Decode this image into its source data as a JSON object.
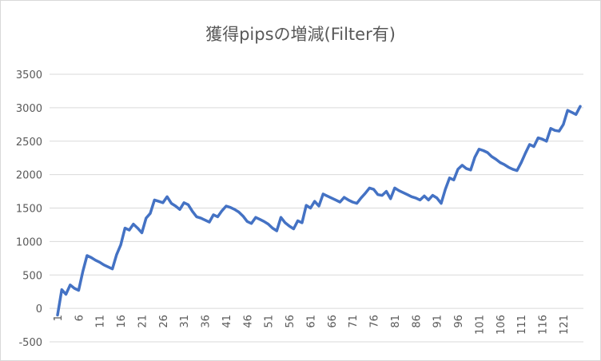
{
  "chart_data": {
    "type": "line",
    "title": "獲得pipsの増減(Filter有)",
    "categories": [
      1,
      null,
      null,
      null,
      null,
      6,
      null,
      null,
      null,
      null,
      11,
      null,
      null,
      null,
      null,
      16,
      null,
      null,
      null,
      null,
      21,
      null,
      null,
      null,
      null,
      26,
      null,
      null,
      null,
      null,
      31,
      null,
      null,
      null,
      null,
      36,
      null,
      null,
      null,
      null,
      41,
      null,
      null,
      null,
      null,
      46,
      null,
      null,
      null,
      null,
      51,
      null,
      null,
      null,
      null,
      56,
      null,
      null,
      null,
      null,
      61,
      null,
      null,
      null,
      null,
      66,
      null,
      null,
      null,
      null,
      71,
      null,
      null,
      null,
      null,
      76,
      null,
      null,
      null,
      null,
      81,
      null,
      null,
      null,
      null,
      86,
      null,
      null,
      null,
      null,
      91,
      null,
      null,
      null,
      null,
      96,
      null,
      null,
      null,
      null,
      101,
      null,
      null,
      null,
      null,
      106,
      null,
      null,
      null,
      null,
      111,
      null,
      null,
      null,
      null,
      116,
      null,
      null,
      null,
      null,
      121,
      null,
      null,
      null,
      null
    ],
    "values": [
      -100,
      280,
      210,
      350,
      300,
      270,
      550,
      790,
      760,
      720,
      690,
      650,
      620,
      590,
      800,
      950,
      1200,
      1170,
      1260,
      1200,
      1130,
      1350,
      1420,
      1620,
      1600,
      1580,
      1670,
      1570,
      1530,
      1480,
      1580,
      1550,
      1450,
      1370,
      1350,
      1320,
      1290,
      1400,
      1370,
      1460,
      1530,
      1510,
      1480,
      1440,
      1380,
      1300,
      1270,
      1360,
      1330,
      1300,
      1260,
      1200,
      1160,
      1360,
      1280,
      1230,
      1190,
      1310,
      1280,
      1540,
      1500,
      1600,
      1530,
      1710,
      1680,
      1650,
      1620,
      1590,
      1660,
      1620,
      1590,
      1570,
      1650,
      1720,
      1800,
      1780,
      1700,
      1690,
      1750,
      1640,
      1800,
      1760,
      1730,
      1700,
      1670,
      1650,
      1620,
      1680,
      1620,
      1690,
      1650,
      1570,
      1780,
      1950,
      1920,
      2080,
      2140,
      2090,
      2070,
      2260,
      2380,
      2360,
      2330,
      2270,
      2230,
      2180,
      2150,
      2110,
      2080,
      2060,
      2180,
      2320,
      2450,
      2420,
      2550,
      2530,
      2500,
      2690,
      2660,
      2650,
      2750,
      2960,
      2930,
      2900,
      3020
    ],
    "color": "#4472c4",
    "ylim": [
      -500,
      3500
    ],
    "yticks": [
      -500,
      0,
      500,
      1000,
      1500,
      2000,
      2500,
      3000,
      3500
    ],
    "grid": true
  }
}
